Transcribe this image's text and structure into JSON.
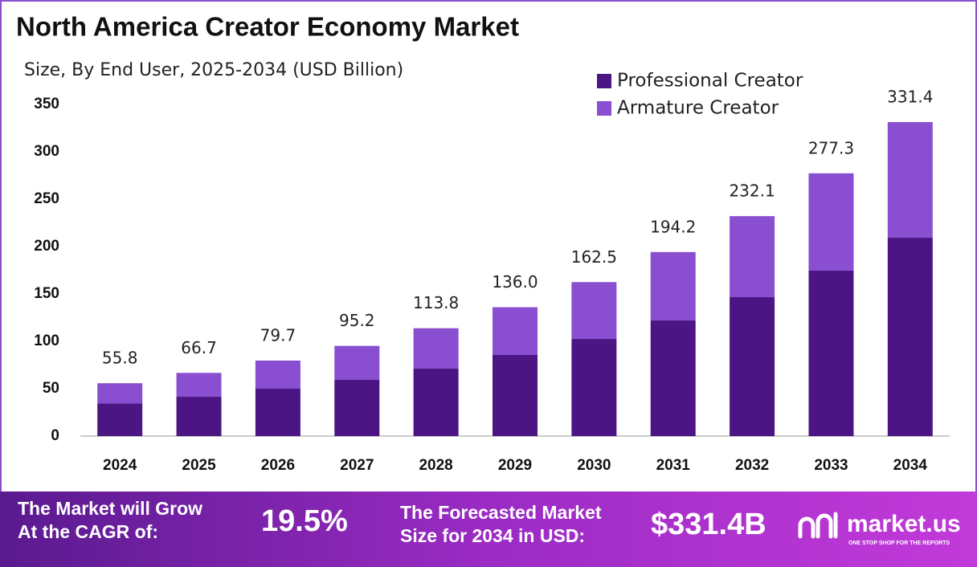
{
  "chart_data": {
    "type": "stacked_bar",
    "title": "North America Creator Economy Market",
    "subtitle": "Size, By End User, 2025-2034 (USD Billion)",
    "categories": [
      "2024",
      "2025",
      "2026",
      "2027",
      "2028",
      "2029",
      "2030",
      "2031",
      "2032",
      "2033",
      "2034"
    ],
    "series": [
      {
        "name": "Professional Creator",
        "color": "#4b1584",
        "values": [
          34.6,
          41.5,
          50.0,
          59.3,
          71.2,
          85.6,
          102.5,
          122.0,
          146.6,
          174.6,
          209.3
        ]
      },
      {
        "name": "Armature Creator",
        "color": "#8a4fd0",
        "values": [
          21.2,
          25.2,
          29.7,
          35.9,
          42.6,
          50.4,
          60.0,
          72.2,
          85.5,
          102.7,
          122.1
        ]
      }
    ],
    "totals": [
      55.8,
      66.7,
      79.7,
      95.2,
      113.8,
      136.0,
      162.5,
      194.2,
      232.1,
      277.3,
      331.4
    ],
    "value_labels": [
      "55.8",
      "66.7",
      "79.7",
      "95.2",
      "113.8",
      "136.0",
      "162.5",
      "194.2",
      "232.1",
      "277.3",
      "331.4"
    ],
    "ylim": [
      0,
      350
    ],
    "yticks": [
      0,
      50,
      100,
      150,
      200,
      250,
      300,
      350
    ],
    "grid": false,
    "legend": "top-right"
  },
  "footer": {
    "cagr_label": [
      "The Market will Grow",
      "At the CAGR of:"
    ],
    "cagr": "19.5%",
    "forecast_label": [
      "The Forecasted Market",
      "Size for 2034 in USD:"
    ],
    "forecast": "$331.4B",
    "brand": "market.us",
    "tagline": "ONE STOP SHOP FOR THE REPORTS"
  }
}
